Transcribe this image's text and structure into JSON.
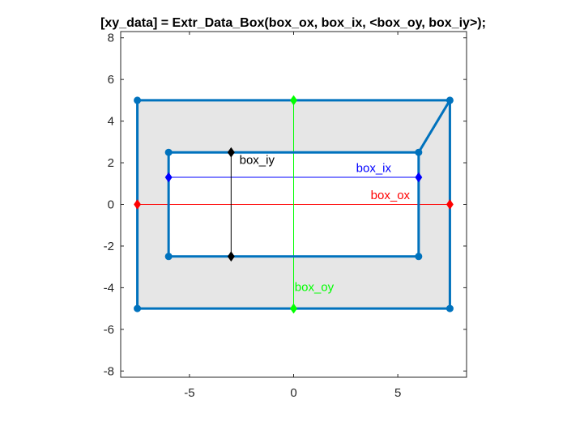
{
  "chart_data": {
    "type": "line",
    "title": "[xy_data] = Extr_Data_Box(box_ox, box_ix, <box_oy, box_iy>);",
    "xlabel": "",
    "ylabel": "",
    "xlim": [
      -8.3,
      8.3
    ],
    "ylim": [
      -8.3,
      8.3
    ],
    "grid": false,
    "x_ticks": [
      -5,
      0,
      5
    ],
    "y_ticks": [
      -8,
      -6,
      -4,
      -2,
      0,
      2,
      4,
      6,
      8
    ],
    "fill_color": "#e6e6e6",
    "box_color": "#0072bd",
    "series": [
      {
        "name": "outer_box",
        "color": "#0072bd",
        "x": [
          -7.5,
          7.5,
          7.5,
          -7.5,
          -7.5
        ],
        "y": [
          5,
          5,
          -5,
          -5,
          5
        ]
      },
      {
        "name": "inner_box",
        "color": "#0072bd",
        "x": [
          -6,
          6,
          6,
          -6,
          -6
        ],
        "y": [
          2.5,
          2.5,
          -2.5,
          -2.5,
          2.5
        ]
      },
      {
        "name": "connector",
        "color": "#0072bd",
        "x": [
          6,
          7.5
        ],
        "y": [
          2.5,
          5
        ]
      },
      {
        "name": "box_ox",
        "color": "#ff0000",
        "x": [
          -7.5,
          7.5
        ],
        "y": [
          0,
          0
        ]
      },
      {
        "name": "box_ix",
        "color": "#0000ff",
        "x": [
          -6,
          6
        ],
        "y": [
          1.3,
          1.3
        ]
      },
      {
        "name": "box_oy",
        "color": "#00ff00",
        "x": [
          0,
          0
        ],
        "y": [
          -5,
          5
        ]
      },
      {
        "name": "box_iy",
        "color": "#000000",
        "x": [
          -3,
          -3
        ],
        "y": [
          -2.5,
          2.5
        ]
      }
    ],
    "annotations": [
      {
        "text": "box_iy",
        "x": -2.6,
        "y": 1.95,
        "color": "#000000"
      },
      {
        "text": "box_ix",
        "x": 3.0,
        "y": 1.55,
        "color": "#0000ff"
      },
      {
        "text": "box_ox",
        "x": 3.7,
        "y": 0.25,
        "color": "#ff0000"
      },
      {
        "text": "box_oy",
        "x": 0.05,
        "y": -4.15,
        "color": "#00ff00"
      }
    ]
  }
}
